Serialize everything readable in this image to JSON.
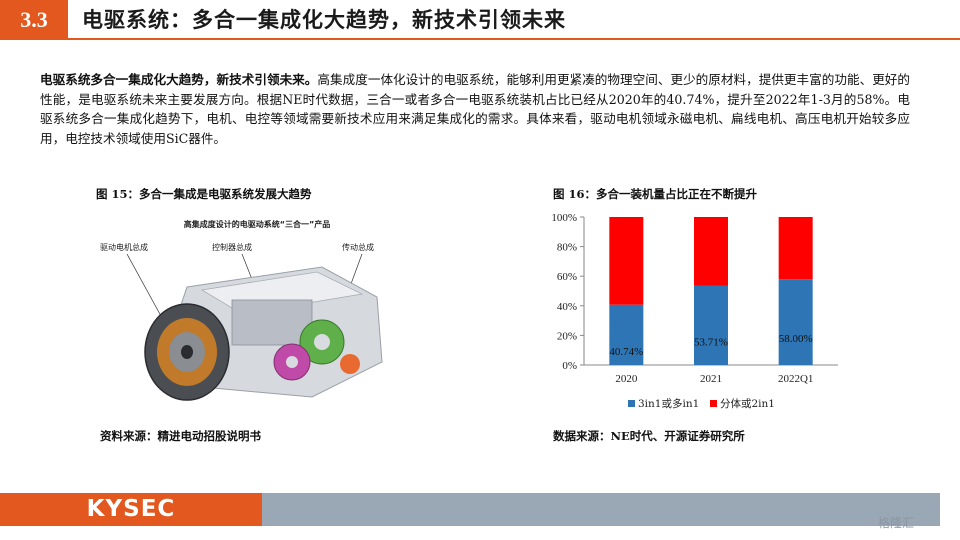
{
  "header": {
    "section_number": "3.3",
    "title": "电驱系统：多合一集成化大趋势，新技术引领未来"
  },
  "body": {
    "lead": "电驱系统多合一集成化大趋势，新技术引领未来。",
    "text": "高集成度一体化设计的电驱系统，能够利用更紧凑的物理空间、更少的原材料，提供更丰富的功能、更好的性能，是电驱系统未来主要发展方向。根据NE时代数据，三合一或者多合一电驱系统装机占比已经从2020年的40.74%，提升至2022年1-3月的58%。电驱系统多合一集成化趋势下，电机、电控等领域需要新技术应用来满足集成化的需求。具体来看，驱动电机领域永磁电机、扁线电机、高压电机开始较多应用，电控技术领域使用SiC器件。"
  },
  "figure15": {
    "title": "图 15：多合一集成是电驱系统发展大趋势",
    "image_caption": "高集成度设计的电驱动系统“三合一”产品",
    "callouts": [
      "驱动电机总成",
      "控制器总成",
      "传动总成"
    ],
    "source": "资料来源：精进电动招股说明书"
  },
  "figure16": {
    "title": "图 16：多合一装机量占比正在不断提升",
    "source": "数据来源：NE时代、开源证券研究所"
  },
  "chart_data": {
    "type": "bar",
    "stacked": true,
    "categories": [
      "2020",
      "2021",
      "2022Q1"
    ],
    "series": [
      {
        "name": "3in1或多in1",
        "values": [
          40.74,
          53.71,
          58.0
        ],
        "color": "#2e75b6",
        "labels": [
          "40.74%",
          "53.71%",
          "58.00%"
        ]
      },
      {
        "name": "分体或2in1",
        "values": [
          59.26,
          46.29,
          42.0
        ],
        "color": "#ff0000"
      }
    ],
    "ylim": [
      0,
      100
    ],
    "yticks": [
      "0%",
      "20%",
      "40%",
      "60%",
      "80%",
      "100%"
    ],
    "legend_position": "bottom",
    "grid": false
  },
  "footer": {
    "logo": "KYSEC",
    "watermark": "格隆汇"
  }
}
